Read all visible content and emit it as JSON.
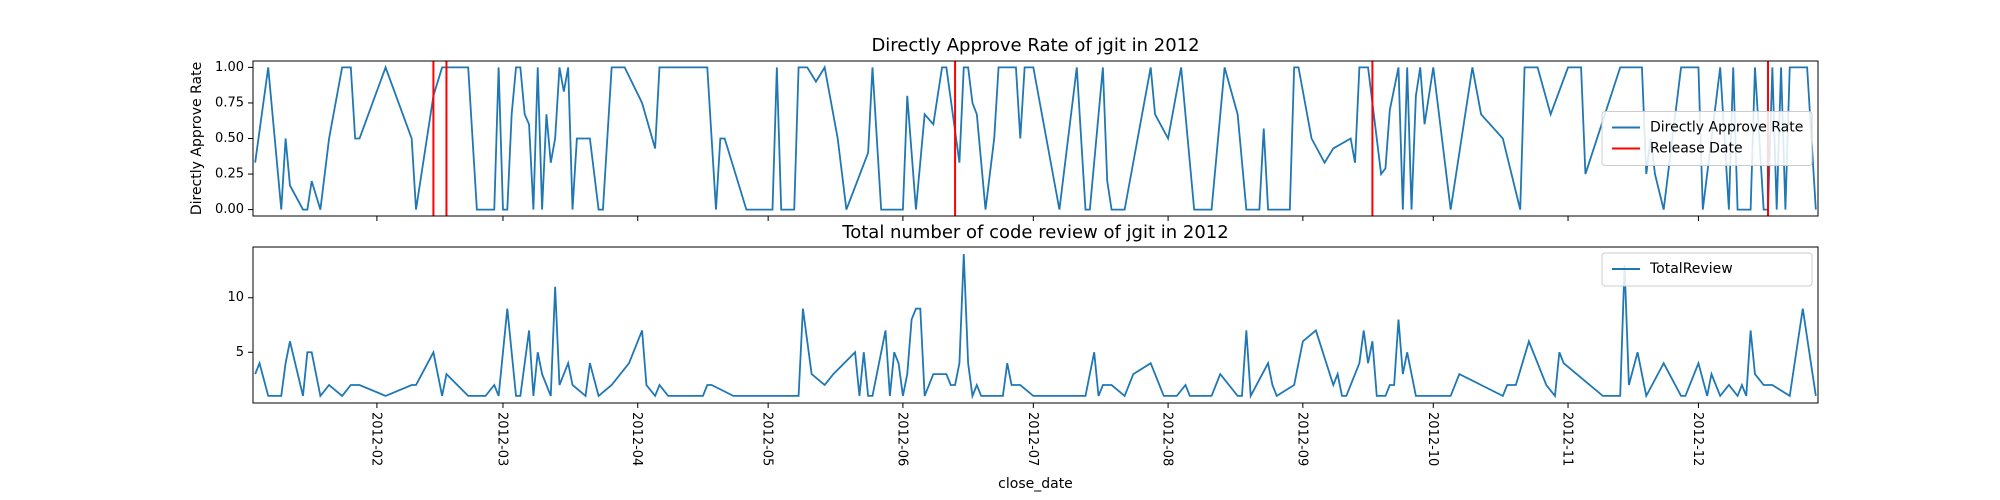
{
  "chart_data": [
    {
      "type": "line",
      "title": "Directly Approve Rate of jgit in 2012",
      "ylabel": "Directly Approve Rate",
      "xlim": [
        2.5,
        362.5
      ],
      "ylim": [
        -0.045,
        1.045
      ],
      "yticks": [
        {
          "value": 0,
          "label": "0.00"
        },
        {
          "value": 0.25,
          "label": "0.25"
        },
        {
          "value": 0.5,
          "label": "0.50"
        },
        {
          "value": 0.75,
          "label": "0.75"
        },
        {
          "value": 1,
          "label": "1.00"
        }
      ],
      "legend": "center right",
      "series": [
        {
          "name": "Directly Approve Rate",
          "color": "#1f77b4",
          "x": [
            3,
            6,
            9,
            10,
            11,
            14,
            15,
            16,
            18,
            20,
            23,
            25,
            26,
            27,
            33,
            39,
            40,
            44,
            46,
            52,
            54,
            58,
            59,
            60,
            61,
            62,
            63,
            64,
            65,
            66,
            67,
            68,
            69,
            70,
            71,
            72,
            73,
            74,
            75,
            76,
            77,
            80,
            82,
            83,
            85,
            88,
            92,
            95,
            96,
            107,
            109,
            110,
            111,
            116,
            122,
            123,
            124,
            127,
            128,
            130,
            132,
            134,
            137,
            139,
            144,
            145,
            147,
            152,
            153,
            155,
            157,
            159,
            161,
            162,
            165,
            166,
            167,
            168,
            169,
            171,
            173,
            174,
            178,
            179,
            180,
            182,
            185,
            188,
            192,
            194,
            195,
            198,
            199,
            200,
            203,
            209,
            210,
            213,
            216,
            219,
            223,
            226,
            229,
            231,
            234,
            235,
            236,
            241,
            242,
            243,
            246,
            249,
            251,
            255,
            256,
            257,
            259,
            262,
            263,
            264,
            266,
            267,
            268,
            269,
            270,
            271,
            272,
            274,
            278,
            283,
            285,
            290,
            294,
            295,
            298,
            301,
            305,
            308,
            309,
            317,
            322,
            323,
            324,
            325,
            327,
            331,
            335,
            336,
            340,
            342,
            343,
            344,
            347,
            348,
            350,
            351,
            352,
            353,
            354,
            355,
            356,
            360,
            362
          ],
          "values": [
            0.33,
            1,
            0,
            0.5,
            0.17,
            0,
            0,
            0.2,
            0,
            0.5,
            1,
            1,
            0.5,
            0.5,
            1,
            0.5,
            0,
            0.8,
            1,
            1,
            0,
            0,
            1,
            0,
            0,
            0.67,
            1,
            1,
            0.67,
            0.6,
            0,
            1,
            0,
            0.67,
            0.33,
            0.5,
            1,
            0.83,
            1,
            0,
            0.5,
            0.5,
            0,
            0,
            1,
            1,
            0.75,
            0.43,
            1,
            1,
            0,
            0.5,
            0.5,
            0,
            0,
            1,
            0,
            0,
            1,
            1,
            0.9,
            1,
            0.5,
            0,
            0.4,
            1,
            0,
            0,
            0.8,
            0,
            0.67,
            0.6,
            1,
            1,
            0.33,
            1,
            1,
            0.75,
            0.67,
            0,
            0.5,
            1,
            1,
            0.5,
            1,
            1,
            0.5,
            0,
            1,
            0,
            0,
            1,
            0.2,
            0,
            0,
            1,
            0.67,
            0.5,
            1,
            0,
            0,
            1,
            0.67,
            0,
            0,
            0.57,
            0,
            0,
            1,
            1,
            0.5,
            0.33,
            0.43,
            0.5,
            0.33,
            1,
            1,
            0.25,
            0.29,
            0.7,
            1,
            0,
            1,
            0,
            0.8,
            1,
            0.6,
            1,
            0,
            1,
            0.67,
            0.5,
            0,
            1,
            1,
            0.67,
            1,
            1,
            0.25,
            1,
            1,
            0.25,
            0.5,
            0.25,
            0,
            1,
            1,
            0,
            1,
            0,
            1,
            0,
            0,
            1,
            0,
            0,
            1,
            0,
            1,
            0,
            1,
            1,
            0
          ]
        }
      ],
      "vlines": {
        "name": "Release Date",
        "color": "#ff0000",
        "x": [
          44,
          47,
          164,
          260,
          351
        ]
      }
    },
    {
      "type": "line",
      "title": "Total number of code review of jgit in 2012",
      "xlabel": "close_date",
      "xlim": [
        2.5,
        362.5
      ],
      "ylim": [
        0.35,
        14.65
      ],
      "yticks": [
        5,
        10
      ],
      "xticks": [
        {
          "value": 31,
          "label": "2012-02"
        },
        {
          "value": 60,
          "label": "2012-03"
        },
        {
          "value": 91,
          "label": "2012-04"
        },
        {
          "value": 121,
          "label": "2012-05"
        },
        {
          "value": 152,
          "label": "2012-06"
        },
        {
          "value": 182,
          "label": "2012-07"
        },
        {
          "value": 213,
          "label": "2012-08"
        },
        {
          "value": 244,
          "label": "2012-09"
        },
        {
          "value": 274,
          "label": "2012-10"
        },
        {
          "value": 305,
          "label": "2012-11"
        },
        {
          "value": 335,
          "label": "2012-12"
        }
      ],
      "legend": "upper right",
      "series": [
        {
          "name": "TotalReview",
          "color": "#1f77b4",
          "x": [
            3,
            4,
            6,
            9,
            10,
            11,
            14,
            15,
            16,
            18,
            20,
            23,
            25,
            27,
            33,
            39,
            40,
            44,
            46,
            47,
            52,
            56,
            58,
            59,
            61,
            63,
            64,
            66,
            67,
            68,
            69,
            71,
            72,
            73,
            75,
            76,
            79,
            80,
            82,
            85,
            89,
            92,
            93,
            95,
            96,
            98,
            106,
            107,
            108,
            113,
            128,
            129,
            131,
            134,
            136,
            141,
            142,
            143,
            144,
            145,
            148,
            149,
            150,
            151,
            152,
            153,
            154,
            155,
            156,
            157,
            159,
            162,
            163,
            164,
            165,
            166,
            167,
            168,
            169,
            170,
            175,
            176,
            177,
            179,
            182,
            194,
            196,
            197,
            198,
            200,
            203,
            205,
            209,
            212,
            215,
            217,
            218,
            223,
            225,
            229,
            230,
            231,
            232,
            236,
            237,
            238,
            242,
            244,
            247,
            251,
            252,
            253,
            254,
            257,
            258,
            259,
            260,
            261,
            263,
            264,
            265,
            266,
            267,
            268,
            270,
            278,
            280,
            285,
            290,
            291,
            293,
            296,
            300,
            302,
            303,
            304,
            313,
            317,
            318,
            319,
            321,
            323,
            327,
            331,
            332,
            335,
            337,
            338,
            340,
            342,
            344,
            345,
            346,
            347,
            348,
            350,
            352,
            356,
            359,
            362
          ],
          "values": [
            3,
            4,
            1,
            1,
            4,
            6,
            1,
            5,
            5,
            1,
            2,
            1,
            2,
            2,
            1,
            2,
            2,
            5,
            1,
            3,
            1,
            1,
            2,
            1,
            9,
            1,
            1,
            7,
            1,
            5,
            3,
            1,
            11,
            2,
            4,
            2,
            1,
            4,
            1,
            2,
            4,
            7,
            2,
            1,
            2,
            1,
            1,
            2,
            2,
            1,
            1,
            9,
            3,
            2,
            3,
            5,
            1,
            5,
            1,
            1,
            7,
            1,
            5,
            4,
            1,
            3,
            8,
            9,
            9,
            1,
            3,
            3,
            2,
            2,
            4,
            14,
            4,
            1,
            2,
            1,
            1,
            4,
            2,
            2,
            1,
            1,
            5,
            1,
            2,
            2,
            1,
            3,
            4,
            1,
            1,
            2,
            1,
            1,
            3,
            1,
            1,
            7,
            1,
            4,
            2,
            1,
            2,
            6,
            7,
            2,
            3,
            1,
            1,
            4,
            7,
            4,
            6,
            1,
            1,
            2,
            2,
            8,
            3,
            5,
            1,
            1,
            3,
            2,
            1,
            2,
            2,
            6,
            2,
            1,
            5,
            4,
            1,
            1,
            13,
            2,
            5,
            1,
            4,
            1,
            1,
            4,
            1,
            3,
            1,
            2,
            1,
            2,
            1,
            7,
            3,
            2,
            2,
            1,
            9,
            1
          ]
        }
      ]
    }
  ]
}
